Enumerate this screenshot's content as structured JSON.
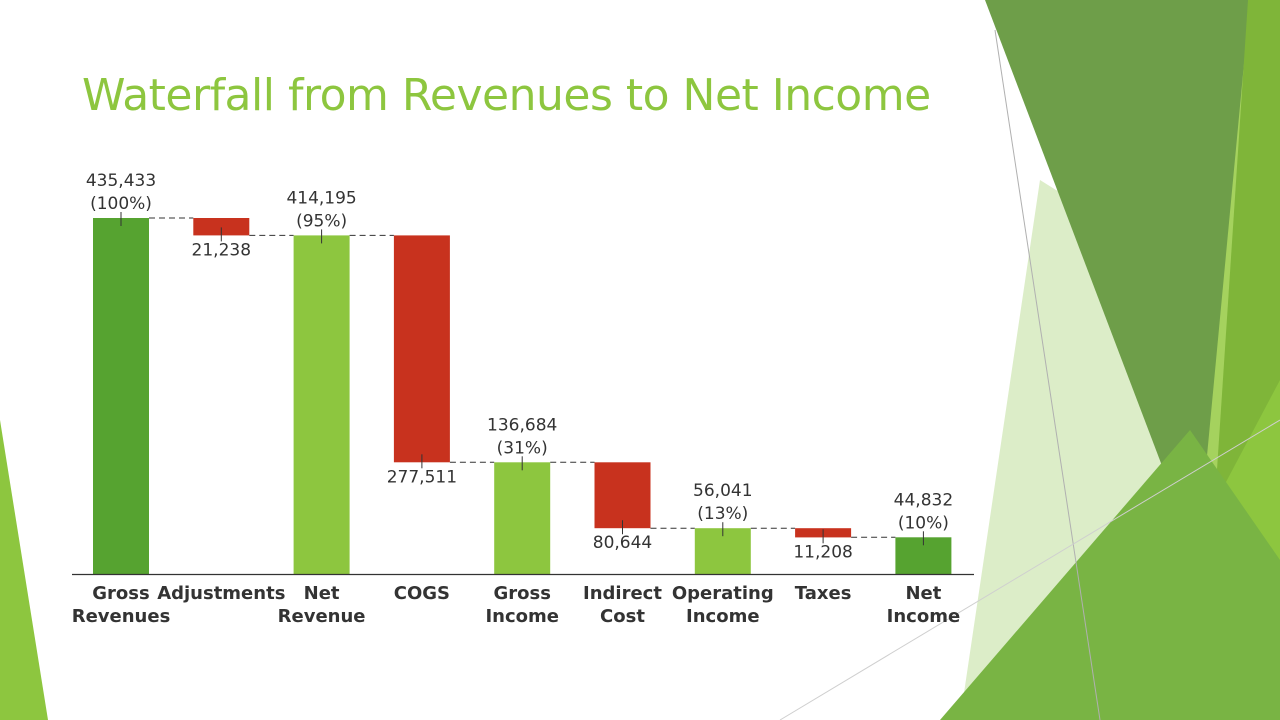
{
  "slide": {
    "title": "Waterfall from Revenues to Net Income"
  },
  "colors": {
    "title": "#8dc63f",
    "total_bar_dark": "#56a330",
    "total_bar_light": "#8dc63f",
    "decrease_bar": "#c8321e",
    "connector": "#333333",
    "axis": "#333333",
    "label_text": "#333333"
  },
  "chart_data": {
    "type": "bar",
    "subtype": "waterfall",
    "title": "Waterfall from Revenues to Net Income",
    "ylim": [
      0,
      435433
    ],
    "grid": false,
    "legend": "none",
    "categories": [
      [
        "Gross",
        "Revenues"
      ],
      [
        "Adjustments"
      ],
      [
        "Net",
        "Revenue"
      ],
      [
        "COGS"
      ],
      [
        "Gross",
        "Income"
      ],
      [
        "Indirect",
        "Cost"
      ],
      [
        "Operating",
        "Income"
      ],
      [
        "Taxes"
      ],
      [
        "Net",
        "Income"
      ]
    ],
    "steps": [
      {
        "kind": "total",
        "value": 435433,
        "value_label": "435,433",
        "pct_label": "(100%)",
        "color": "#56a330"
      },
      {
        "kind": "decrease",
        "value": 21238,
        "value_label": "21,238",
        "color": "#c8321e"
      },
      {
        "kind": "total",
        "value": 414195,
        "value_label": "414,195",
        "pct_label": "(95%)",
        "color": "#8dc63f"
      },
      {
        "kind": "decrease",
        "value": 277511,
        "value_label": "277,511",
        "color": "#c8321e"
      },
      {
        "kind": "total",
        "value": 136684,
        "value_label": "136,684",
        "pct_label": "(31%)",
        "color": "#8dc63f"
      },
      {
        "kind": "decrease",
        "value": 80644,
        "value_label": "80,644",
        "color": "#c8321e"
      },
      {
        "kind": "total",
        "value": 56041,
        "value_label": "56,041",
        "pct_label": "(13%)",
        "color": "#8dc63f"
      },
      {
        "kind": "decrease",
        "value": 11208,
        "value_label": "11,208",
        "color": "#c8321e"
      },
      {
        "kind": "total",
        "value": 44832,
        "value_label": "44,832",
        "pct_label": "(10%)",
        "color": "#56a330"
      }
    ]
  }
}
